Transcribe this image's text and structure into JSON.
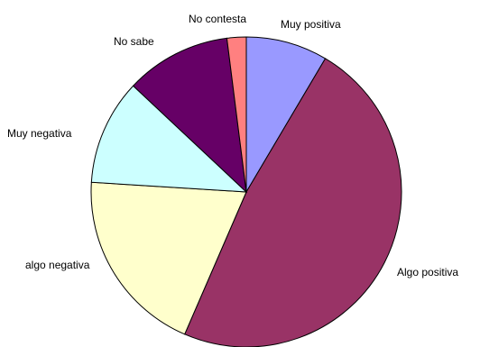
{
  "chart_data": {
    "type": "pie",
    "title": "",
    "start": "top",
    "direction": "clockwise",
    "slices": [
      {
        "label": "Muy positiva",
        "value": 8.5,
        "color": "#9999ff"
      },
      {
        "label": "Algo positiva",
        "value": 48.0,
        "color": "#993366"
      },
      {
        "label": "algo negativa",
        "value": 19.5,
        "color": "#ffffcc"
      },
      {
        "label": "Muy negativa",
        "value": 11.0,
        "color": "#ccffff"
      },
      {
        "label": "No sabe",
        "value": 11.0,
        "color": "#660066"
      },
      {
        "label": "No contesta",
        "value": 2.0,
        "color": "#ff8080"
      }
    ]
  }
}
